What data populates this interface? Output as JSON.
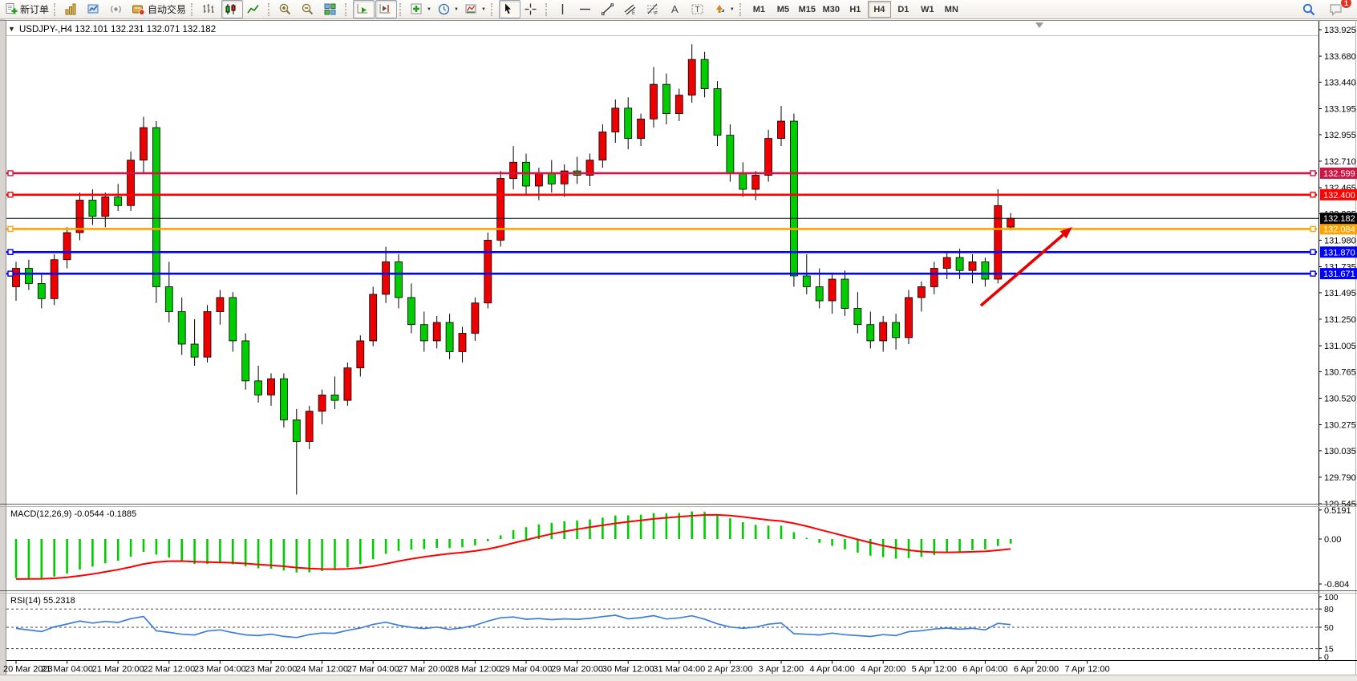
{
  "toolbar": {
    "new_order_label": "新订单",
    "auto_trading_label": "自动交易",
    "timeframes": [
      "M1",
      "M5",
      "M15",
      "M30",
      "H1",
      "H4",
      "D1",
      "W1",
      "MN"
    ],
    "active_timeframe": "H4",
    "notification_count": "1"
  },
  "chart": {
    "title_symbol": "USDJPY-,H4",
    "title_ohlc": "132.101 132.231 132.071 132.182"
  },
  "chart_data": {
    "type": "candlestick",
    "symbol": "USDJPY-",
    "timeframe": "H4",
    "current_bar": {
      "open": 132.101,
      "high": 132.231,
      "low": 132.071,
      "close": 132.182
    },
    "bull_color": "#ee0000",
    "bear_color": "#00cd00",
    "wick_color": "#000000",
    "y_axis": {
      "labels": [
        "133.925",
        "133.680",
        "133.440",
        "133.195",
        "132.955",
        "132.710",
        "132.465",
        "132.225",
        "131.980",
        "131.735",
        "131.495",
        "131.250",
        "131.005",
        "130.765",
        "130.520",
        "130.275",
        "130.035",
        "129.790",
        "129.545"
      ],
      "min": 129.545,
      "max": 133.925
    },
    "x_labels": [
      "20 Mar 2023",
      "21 Mar 04:00",
      "21 Mar 20:00",
      "22 Mar 12:00",
      "23 Mar 04:00",
      "23 Mar 20:00",
      "24 Mar 12:00",
      "27 Mar 04:00",
      "27 Mar 20:00",
      "28 Mar 12:00",
      "29 Mar 04:00",
      "29 Mar 20:00",
      "30 Mar 12:00",
      "31 Mar 04:00",
      "2 Apr 23:00",
      "3 Apr 12:00",
      "4 Apr 04:00",
      "4 Apr 20:00",
      "5 Apr 12:00",
      "6 Apr 04:00",
      "6 Apr 20:00",
      "7 Apr 12:00"
    ],
    "candles": [
      [
        131.55,
        131.78,
        131.42,
        131.72
      ],
      [
        131.72,
        131.8,
        131.52,
        131.58
      ],
      [
        131.58,
        131.66,
        131.35,
        131.44
      ],
      [
        131.44,
        131.85,
        131.38,
        131.8
      ],
      [
        131.8,
        132.1,
        131.72,
        132.05
      ],
      [
        132.05,
        132.42,
        131.98,
        132.35
      ],
      [
        132.35,
        132.45,
        132.12,
        132.2
      ],
      [
        132.2,
        132.42,
        132.1,
        132.38
      ],
      [
        132.38,
        132.5,
        132.25,
        132.3
      ],
      [
        132.3,
        132.8,
        132.25,
        132.72
      ],
      [
        132.72,
        133.12,
        132.6,
        133.02
      ],
      [
        133.02,
        133.08,
        131.4,
        131.55
      ],
      [
        131.55,
        131.78,
        131.22,
        131.32
      ],
      [
        131.32,
        131.45,
        130.92,
        131.02
      ],
      [
        131.02,
        131.25,
        130.82,
        130.9
      ],
      [
        130.9,
        131.38,
        130.85,
        131.32
      ],
      [
        131.32,
        131.52,
        131.2,
        131.45
      ],
      [
        131.45,
        131.5,
        130.95,
        131.05
      ],
      [
        131.05,
        131.12,
        130.6,
        130.68
      ],
      [
        130.68,
        130.82,
        130.48,
        130.55
      ],
      [
        130.55,
        130.75,
        130.45,
        130.7
      ],
      [
        130.7,
        130.75,
        130.25,
        130.32
      ],
      [
        130.32,
        130.42,
        129.63,
        130.12
      ],
      [
        130.12,
        130.45,
        130.05,
        130.4
      ],
      [
        130.4,
        130.6,
        130.28,
        130.55
      ],
      [
        130.55,
        130.72,
        130.42,
        130.5
      ],
      [
        130.5,
        130.85,
        130.45,
        130.8
      ],
      [
        130.8,
        131.1,
        130.72,
        131.05
      ],
      [
        131.05,
        131.55,
        131.0,
        131.48
      ],
      [
        131.48,
        131.92,
        131.4,
        131.78
      ],
      [
        131.78,
        131.85,
        131.35,
        131.45
      ],
      [
        131.45,
        131.58,
        131.12,
        131.2
      ],
      [
        131.2,
        131.32,
        130.95,
        131.05
      ],
      [
        131.05,
        131.28,
        130.98,
        131.22
      ],
      [
        131.22,
        131.3,
        130.88,
        130.95
      ],
      [
        130.95,
        131.18,
        130.85,
        131.12
      ],
      [
        131.12,
        131.45,
        131.05,
        131.4
      ],
      [
        131.4,
        132.05,
        131.35,
        131.98
      ],
      [
        131.98,
        132.62,
        131.92,
        132.55
      ],
      [
        132.55,
        132.85,
        132.45,
        132.7
      ],
      [
        132.7,
        132.78,
        132.4,
        132.48
      ],
      [
        132.48,
        132.65,
        132.35,
        132.6
      ],
      [
        132.6,
        132.72,
        132.42,
        132.5
      ],
      [
        132.5,
        132.68,
        132.38,
        132.62
      ],
      [
        132.62,
        132.75,
        132.5,
        132.58
      ],
      [
        132.58,
        132.78,
        132.48,
        132.72
      ],
      [
        132.72,
        133.05,
        132.65,
        132.98
      ],
      [
        132.98,
        133.28,
        132.88,
        133.2
      ],
      [
        133.2,
        133.3,
        132.82,
        132.92
      ],
      [
        132.92,
        133.15,
        132.85,
        133.1
      ],
      [
        133.1,
        133.58,
        133.02,
        133.42
      ],
      [
        133.42,
        133.52,
        133.05,
        133.15
      ],
      [
        133.15,
        133.38,
        133.08,
        133.32
      ],
      [
        133.32,
        133.79,
        133.25,
        133.65
      ],
      [
        133.65,
        133.72,
        133.3,
        133.38
      ],
      [
        133.38,
        133.45,
        132.85,
        132.95
      ],
      [
        132.95,
        133.05,
        132.52,
        132.6
      ],
      [
        132.6,
        132.7,
        132.38,
        132.45
      ],
      [
        132.45,
        132.62,
        132.35,
        132.58
      ],
      [
        132.58,
        133.0,
        132.52,
        132.92
      ],
      [
        132.92,
        133.22,
        132.85,
        133.08
      ],
      [
        133.08,
        133.15,
        131.55,
        131.65
      ],
      [
        131.65,
        131.85,
        131.48,
        131.55
      ],
      [
        131.55,
        131.72,
        131.35,
        131.42
      ],
      [
        131.42,
        131.68,
        131.3,
        131.62
      ],
      [
        131.62,
        131.7,
        131.28,
        131.35
      ],
      [
        131.35,
        131.5,
        131.12,
        131.2
      ],
      [
        131.2,
        131.32,
        130.98,
        131.05
      ],
      [
        131.05,
        131.28,
        130.95,
        131.22
      ],
      [
        131.22,
        131.3,
        130.97,
        131.08
      ],
      [
        131.08,
        131.52,
        131.02,
        131.45
      ],
      [
        131.45,
        131.6,
        131.32,
        131.55
      ],
      [
        131.55,
        131.78,
        131.48,
        131.72
      ],
      [
        131.72,
        131.88,
        131.62,
        131.82
      ],
      [
        131.82,
        131.9,
        131.62,
        131.7
      ],
      [
        131.7,
        131.85,
        131.58,
        131.78
      ],
      [
        131.78,
        131.82,
        131.55,
        131.62
      ],
      [
        131.62,
        132.45,
        131.58,
        132.3
      ],
      [
        132.101,
        132.231,
        132.071,
        132.182
      ]
    ],
    "hlines": [
      {
        "price": 132.599,
        "label": "132.599",
        "color": "#d01545"
      },
      {
        "price": 132.4,
        "label": "132.400",
        "color": "#ff0000"
      },
      {
        "price": 132.084,
        "label": "132.084",
        "color": "#ffa200"
      },
      {
        "price": 131.87,
        "label": "131.870",
        "color": "#0000ff"
      },
      {
        "price": 131.671,
        "label": "131.671",
        "color": "#0000ff"
      }
    ],
    "current_price": {
      "value": 132.182,
      "label": "132.182",
      "color": "#000000"
    },
    "indicators": {
      "macd": {
        "name": "MACD(12,26,9)",
        "values_text": "-0.0544 -0.1885",
        "axis_labels": [
          "0.5191",
          "0.00",
          "-0.804"
        ],
        "axis_values": [
          0.5191,
          0,
          -0.804
        ],
        "histogram_color": "#00cd00",
        "signal_color": "#ff0000"
      },
      "rsi": {
        "name": "RSI(14)",
        "value_text": "55.2318",
        "axis_labels": [
          "100",
          "80",
          "50",
          "15",
          "0"
        ],
        "axis_values": [
          100,
          80,
          50,
          15,
          0
        ],
        "dashed_levels": [
          80,
          50,
          15
        ],
        "line_color": "#3d7edb"
      }
    },
    "annotation_arrow": {
      "color": "#e60000"
    }
  }
}
